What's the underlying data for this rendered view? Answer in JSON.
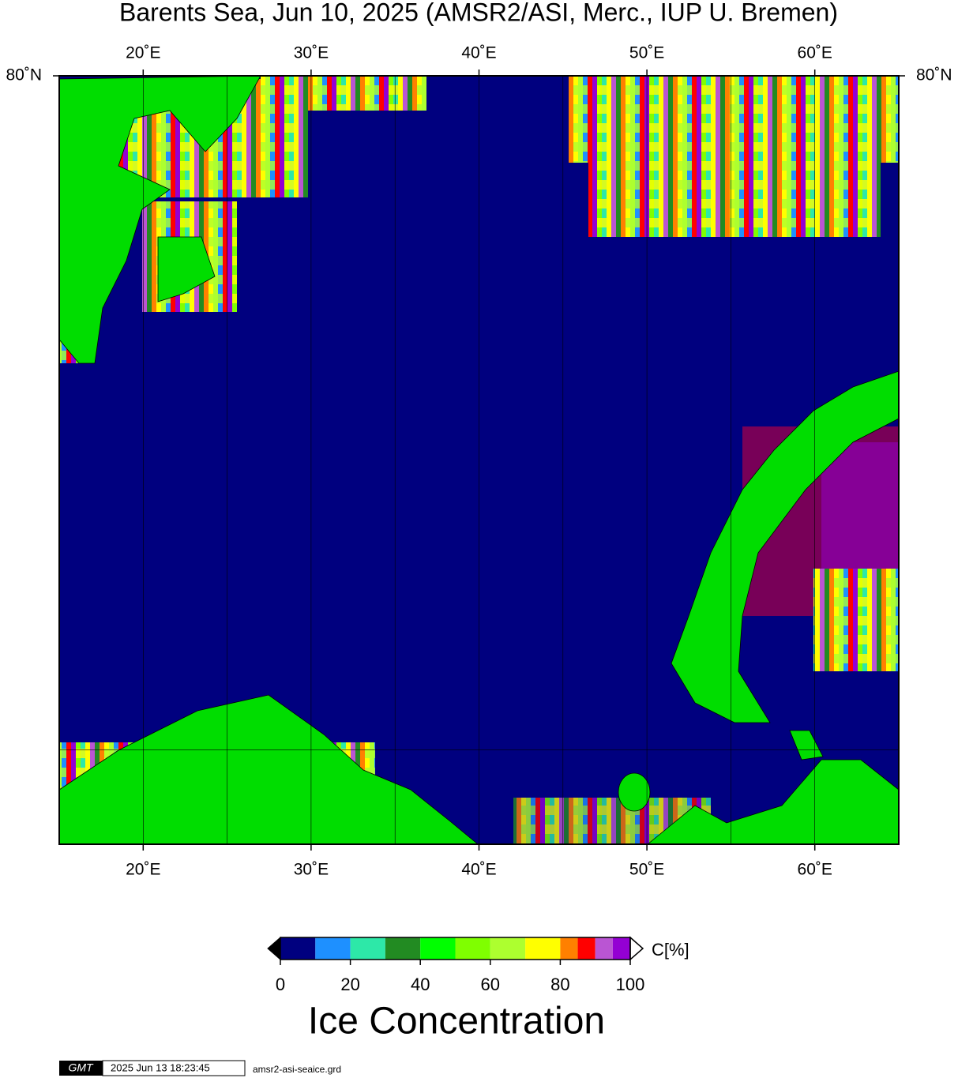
{
  "chart_data": {
    "type": "map",
    "title": "Barents Sea, Jun 10, 2025 (AMSR2/ASI, Merc., IUP U. Bremen)",
    "projection": "mercator",
    "xlim": [
      15,
      65
    ],
    "ylim": [
      68,
      80
    ],
    "xticks": [
      {
        "value": 20,
        "label": "20˚E"
      },
      {
        "value": 30,
        "label": "30˚E"
      },
      {
        "value": 40,
        "label": "40˚E"
      },
      {
        "value": 50,
        "label": "50˚E"
      },
      {
        "value": 60,
        "label": "60˚E"
      }
    ],
    "yticks": [
      {
        "value": 80,
        "label": "80˚N"
      }
    ],
    "grid": true,
    "xgrid": [
      20,
      25,
      30,
      35,
      40,
      45,
      50,
      55,
      60
    ],
    "ygrid": [
      70
    ],
    "colorbar": {
      "label": "Ice Concentration",
      "unit": "C[%]",
      "bounds": [
        0,
        10,
        20,
        30,
        40,
        50,
        60,
        70,
        80,
        85,
        90,
        95,
        100
      ],
      "colors": [
        "#00007f",
        "#1e90ff",
        "#2de8a8",
        "#228b22",
        "#00ff00",
        "#7fff00",
        "#adff2f",
        "#ffff00",
        "#ff8000",
        "#ff0000",
        "#ba55d3",
        "#9400d3"
      ],
      "ticks": [
        0,
        20,
        40,
        60,
        80,
        100
      ]
    }
  },
  "footer": {
    "logo": "GMT",
    "timestamp": "2025 Jun 13 18:23:45",
    "file": "amsr2-asi-seaice.grd"
  }
}
